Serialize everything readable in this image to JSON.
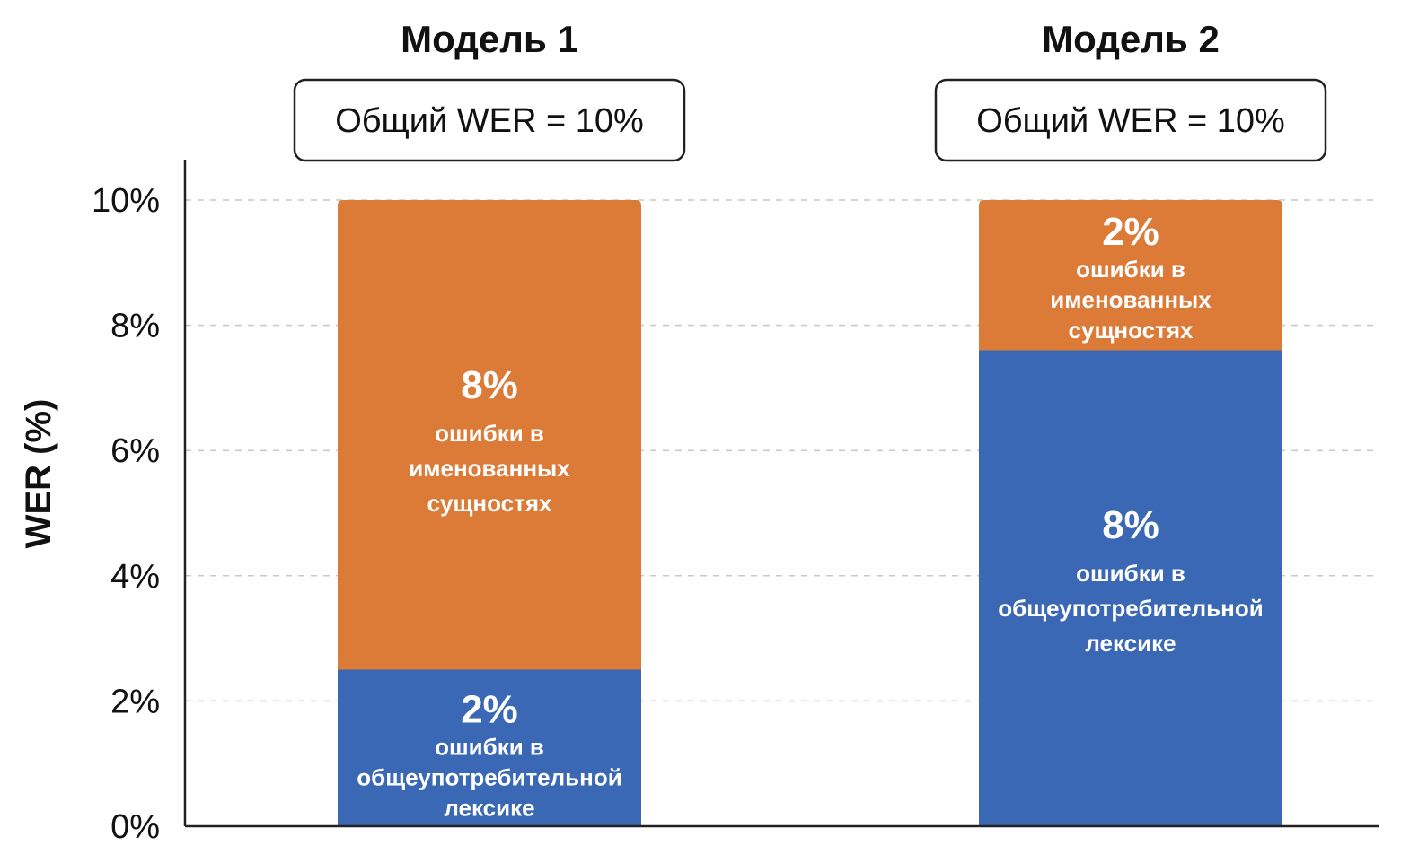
{
  "chart_data": {
    "type": "bar",
    "stacked": true,
    "ylabel": "WER (%)",
    "ylim": [
      0,
      10
    ],
    "yticks": [
      {
        "value": 0,
        "label": "0%"
      },
      {
        "value": 2,
        "label": "2%"
      },
      {
        "value": 4,
        "label": "4%"
      },
      {
        "value": 6,
        "label": "6%"
      },
      {
        "value": 8,
        "label": "8%"
      },
      {
        "value": 10,
        "label": "10%"
      }
    ],
    "grid": true,
    "categories": [
      {
        "name": "Модель 1",
        "total_label": "Общий WER = 10%",
        "segments": [
          {
            "series": "common",
            "value": 2.5,
            "value_label": "2%",
            "label_lines": [
              "ошибки в",
              "общеупотребительной",
              "лексике"
            ]
          },
          {
            "series": "entities",
            "value": 7.5,
            "value_label": "8%",
            "label_lines": [
              "ошибки в",
              "именованных",
              "сущностях"
            ]
          }
        ]
      },
      {
        "name": "Модель 2",
        "total_label": "Общий WER = 10%",
        "segments": [
          {
            "series": "common",
            "value": 7.6,
            "value_label": "8%",
            "label_lines": [
              "ошибки в",
              "общеупотребительной",
              "лексике"
            ]
          },
          {
            "series": "entities",
            "value": 2.4,
            "value_label": "2%",
            "label_lines": [
              "ошибки в",
              "именованных",
              "сущностях"
            ]
          }
        ]
      }
    ],
    "colors": {
      "common": "#3a68b5",
      "entities": "#dc7a37"
    }
  }
}
